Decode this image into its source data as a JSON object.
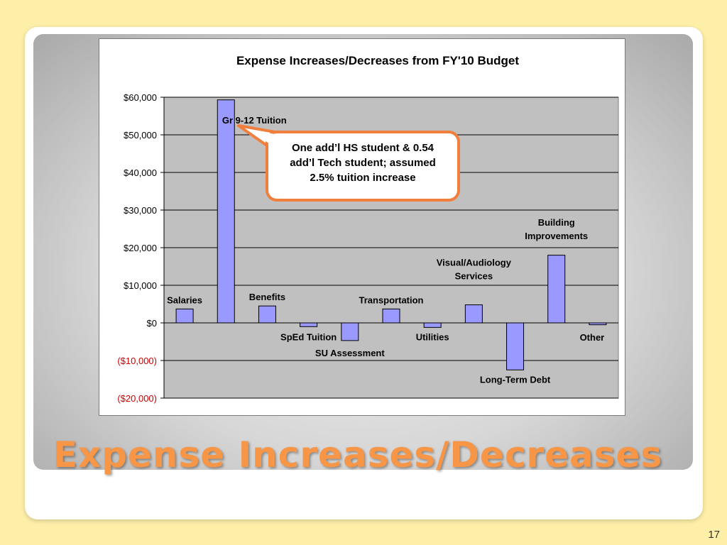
{
  "slide": {
    "title": "Expense Increases/Decreases",
    "page_number": "17"
  },
  "colors": {
    "background": "#fdeea8",
    "title": "#f79646",
    "bar_fill": "#9999ff",
    "plot_area": "#c0c0c0",
    "negative_tick": "#cc0000",
    "callout_border": "#f07e3c"
  },
  "chart_data": {
    "type": "bar",
    "title": "Expense Increases/Decreases from FY'10 Budget",
    "ylim": [
      -20000,
      60000
    ],
    "yticks": [
      {
        "value": 60000,
        "label": "$60,000"
      },
      {
        "value": 50000,
        "label": "$50,000"
      },
      {
        "value": 40000,
        "label": "$40,000"
      },
      {
        "value": 30000,
        "label": "$30,000"
      },
      {
        "value": 20000,
        "label": "$20,000"
      },
      {
        "value": 10000,
        "label": "$10,000"
      },
      {
        "value": 0,
        "label": "$0"
      },
      {
        "value": -10000,
        "label": "($10,000)"
      },
      {
        "value": -20000,
        "label": "($20,000)"
      }
    ],
    "grid": true,
    "categories": [
      "Salaries",
      "Gr 9-12 Tuition",
      "Benefits",
      "SpEd Tuition",
      "SU Assessment",
      "Transportation",
      "Utilities",
      "Visual/Audiology Services",
      "Long-Term Debt",
      "Building Improvements",
      "Other"
    ],
    "values": [
      3700,
      59300,
      4500,
      -1000,
      -4700,
      3700,
      -1200,
      4800,
      -12500,
      18000,
      -500
    ],
    "labels": [
      {
        "lines": [
          "Salaries"
        ]
      },
      {
        "lines": [
          "Gr 9-12 Tuition"
        ]
      },
      {
        "lines": [
          "Benefits"
        ]
      },
      {
        "lines": [
          "SpEd Tuition"
        ]
      },
      {
        "lines": [
          "SU Assessment"
        ]
      },
      {
        "lines": [
          "Transportation"
        ]
      },
      {
        "lines": [
          "Utilities"
        ]
      },
      {
        "lines": [
          "Visual/Audiology",
          "Services"
        ]
      },
      {
        "lines": [
          "Long-Term Debt"
        ]
      },
      {
        "lines": [
          "Building",
          "Improvements"
        ]
      },
      {
        "lines": [
          "Other"
        ]
      }
    ],
    "annotation": {
      "lines": [
        "One add’l HS student & 0.54",
        "add’l Tech student; assumed",
        "2.5% tuition increase"
      ]
    }
  }
}
